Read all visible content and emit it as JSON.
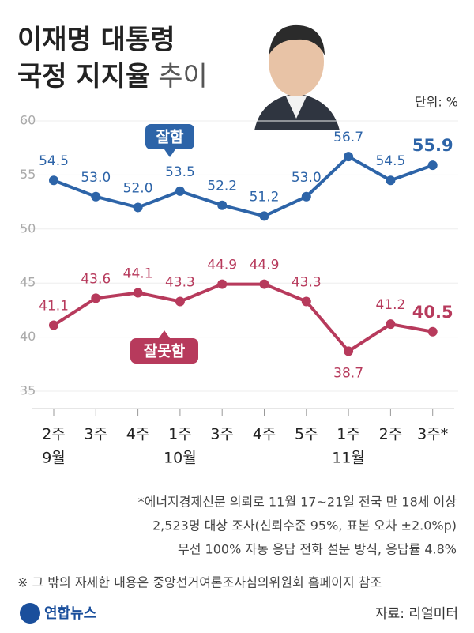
{
  "chart_data": {
    "type": "line",
    "title_line1": "이재명 대통령",
    "title_line2": "국정 지지율",
    "title_suffix": "추이",
    "unit": "단위: %",
    "categories": [
      "2주",
      "3주",
      "4주",
      "1주",
      "3주",
      "4주",
      "5주",
      "1주",
      "2주",
      "3주*"
    ],
    "categories_sub": [
      "9월",
      null,
      null,
      "10월",
      null,
      null,
      null,
      "11월",
      null,
      null
    ],
    "series": [
      {
        "name": "잘함",
        "color": "#2d64a8",
        "values": [
          54.5,
          53.0,
          52.0,
          53.5,
          52.2,
          51.2,
          53.0,
          56.7,
          54.5,
          55.9
        ],
        "value_labels": [
          "54.5",
          "53.0",
          "52.0",
          "53.5",
          "52.2",
          "51.2",
          "53.0",
          "56.7",
          "54.5",
          "55.9"
        ]
      },
      {
        "name": "잘못함",
        "color": "#b73a5c",
        "values": [
          41.1,
          43.6,
          44.1,
          43.3,
          44.9,
          44.9,
          43.3,
          38.7,
          41.2,
          40.5
        ],
        "value_labels": [
          "41.1",
          "43.6",
          "44.1",
          "43.3",
          "44.9",
          "44.9",
          "43.3",
          "38.7",
          "41.2",
          "40.5"
        ]
      }
    ],
    "ylim": [
      35,
      60
    ],
    "yticks": [
      35,
      40,
      45,
      50,
      55,
      60
    ],
    "notes": [
      "*에너지경제신문 의뢰로 11월 17~21일 전국 만 18세 이상",
      "2,523명 대상 조사(신뢰수준 95%, 표본 오차 ±2.0%p)",
      "무선 100% 자동 응답 전화 설문 방식, 응답률 4.8%"
    ],
    "remark": "※ 그 밖의 자세한 내용은 중앙선거여론조사심의위원회 홈페이지 참조",
    "logo": "연합뉴스",
    "source": "자료: 리얼미터"
  }
}
